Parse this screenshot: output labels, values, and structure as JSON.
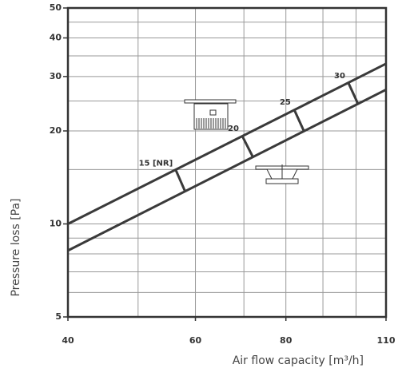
{
  "chart_data": {
    "type": "line",
    "ylabel": "Pressure loss [Pa]",
    "xlabel": "Air flow capacity  [m³/h]",
    "xscale": "log",
    "yscale": "log",
    "xlim": [
      40,
      110
    ],
    "ylim": [
      5,
      50
    ],
    "xticks": [
      40,
      60,
      80,
      110
    ],
    "yticks": [
      5,
      10,
      20,
      30,
      40,
      50
    ],
    "xgrid": [
      50,
      60,
      70,
      80,
      90,
      100
    ],
    "ygrid": [
      6,
      7,
      8,
      9,
      10,
      15,
      20,
      25,
      30,
      35,
      40,
      45
    ],
    "grid": true,
    "series": [
      {
        "color": "#3a3a3a",
        "x": [
          40,
          110
        ],
        "values": [
          10,
          33
        ]
      },
      {
        "color": "#3a3a3a",
        "x": [
          40,
          110
        ],
        "values": [
          8.2,
          27.2
        ]
      }
    ],
    "nr_lines": [
      {
        "label": "15 [NR]",
        "x": [
          56.4,
          58.1
        ],
        "y": [
          14.9,
          12.7
        ]
      },
      {
        "label": "20",
        "x": [
          69.6,
          72.0
        ],
        "y": [
          19.3,
          16.5
        ]
      },
      {
        "label": "25",
        "x": [
          82.1,
          84.7
        ],
        "y": [
          23.5,
          20.0
        ]
      },
      {
        "label": "30",
        "x": [
          97.6,
          100.6
        ],
        "y": [
          28.6,
          24.5
        ]
      }
    ]
  }
}
